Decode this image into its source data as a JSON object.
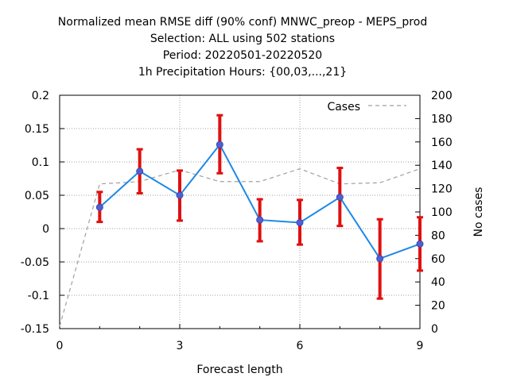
{
  "chart_data": {
    "type": "line",
    "title": [
      "Normalized mean RMSE diff (90% conf) MNWC_preop - MEPS_prod",
      "Selection: ALL using   502 stations",
      "Period: 20220501-20220520",
      "1h Precipitation   Hours: {00,03,...,21}"
    ],
    "xlabel": "Forecast length",
    "ylabel": "",
    "y2label": "No cases",
    "xlim": [
      0,
      9
    ],
    "ylim": [
      -0.15,
      0.2
    ],
    "y2lim": [
      0,
      200
    ],
    "xticks": [
      0,
      3,
      6,
      9
    ],
    "yticks": [
      -0.15,
      -0.1,
      -0.05,
      0,
      0.05,
      0.1,
      0.15,
      0.2
    ],
    "yticklabels": [
      "-0.15",
      "-0.1",
      "-0.05",
      "0",
      "0.05",
      "0.1",
      "0.15",
      "0.2"
    ],
    "y2ticks": [
      0,
      20,
      40,
      60,
      80,
      100,
      120,
      140,
      160,
      180,
      200
    ],
    "grid": true,
    "legend": "top-right",
    "series": [
      {
        "color": "#1e88e5",
        "x": [
          1,
          2,
          3,
          4,
          5,
          6,
          7,
          8,
          9
        ],
        "y": [
          0.032,
          0.086,
          0.05,
          0.126,
          0.013,
          0.009,
          0.047,
          -0.045,
          -0.023
        ],
        "err_low": [
          0.01,
          0.053,
          0.012,
          0.083,
          -0.019,
          -0.024,
          0.004,
          -0.105,
          -0.063
        ],
        "err_high": [
          0.055,
          0.119,
          0.087,
          0.17,
          0.044,
          0.043,
          0.091,
          0.014,
          0.017
        ],
        "error_color": "#e01010"
      },
      {
        "name": "Cases",
        "axis": "y2",
        "style": "dashed",
        "color": "#a0a0a0",
        "x": [
          0,
          1,
          2,
          3,
          4,
          5,
          6,
          7,
          8,
          9
        ],
        "y": [
          2,
          124,
          126,
          136,
          126,
          126,
          137,
          124,
          125,
          137
        ]
      }
    ]
  }
}
